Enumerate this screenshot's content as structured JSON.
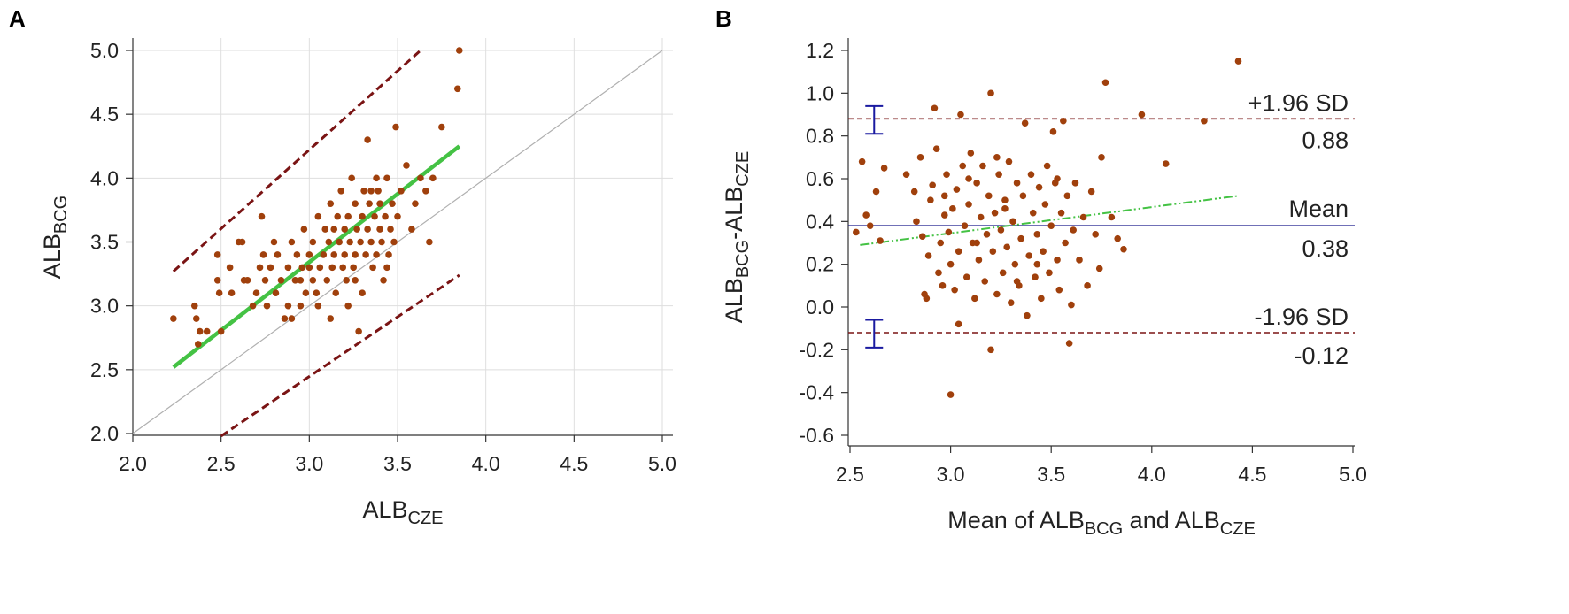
{
  "panel_a": {
    "label": "A",
    "chart_data": {
      "type": "scatter",
      "title": "",
      "xlabel": {
        "main": "ALB",
        "sub": "CZE"
      },
      "ylabel": {
        "main": "ALB",
        "sub": "BCG"
      },
      "xlim": [
        2.0,
        5.0
      ],
      "ylim": [
        2.0,
        5.0
      ],
      "xticks": [
        "2.0",
        "2.5",
        "3.0",
        "3.5",
        "4.0",
        "4.5",
        "5.0"
      ],
      "yticks": [
        "2.0",
        "2.5",
        "3.0",
        "3.5",
        "4.0",
        "4.5",
        "5.0"
      ],
      "grid": true,
      "identity_line": {
        "x": [
          2.0,
          5.0
        ],
        "y": [
          2.0,
          5.0
        ],
        "color": "#b0b0b0"
      },
      "regression_line": {
        "x": [
          2.23,
          3.85
        ],
        "y": [
          2.52,
          4.25
        ],
        "color": "#44c244"
      },
      "prediction_upper": {
        "x": [
          2.23,
          3.63
        ],
        "y": [
          3.27,
          5.0
        ],
        "color": "#7a1414"
      },
      "prediction_lower": {
        "x": [
          2.5,
          3.85
        ],
        "y": [
          1.98,
          3.24
        ],
        "color": "#7a1414"
      },
      "point_color": "#a0400c",
      "points": [
        [
          2.23,
          2.9
        ],
        [
          2.35,
          3.0
        ],
        [
          2.36,
          2.9
        ],
        [
          2.37,
          2.7
        ],
        [
          2.38,
          2.8
        ],
        [
          2.42,
          2.8
        ],
        [
          2.48,
          3.4
        ],
        [
          2.48,
          3.2
        ],
        [
          2.49,
          3.1
        ],
        [
          2.5,
          2.8
        ],
        [
          2.55,
          3.3
        ],
        [
          2.56,
          3.1
        ],
        [
          2.6,
          3.5
        ],
        [
          2.62,
          3.5
        ],
        [
          2.63,
          3.2
        ],
        [
          2.65,
          3.2
        ],
        [
          2.68,
          3.0
        ],
        [
          2.7,
          3.1
        ],
        [
          2.72,
          3.3
        ],
        [
          2.73,
          3.7
        ],
        [
          2.74,
          3.4
        ],
        [
          2.75,
          3.2
        ],
        [
          2.76,
          3.0
        ],
        [
          2.78,
          3.3
        ],
        [
          2.8,
          3.5
        ],
        [
          2.81,
          3.1
        ],
        [
          2.82,
          3.4
        ],
        [
          2.84,
          3.2
        ],
        [
          2.86,
          2.9
        ],
        [
          2.88,
          3.3
        ],
        [
          2.88,
          3.0
        ],
        [
          2.9,
          2.9
        ],
        [
          2.9,
          3.5
        ],
        [
          2.92,
          3.2
        ],
        [
          2.93,
          3.4
        ],
        [
          2.95,
          3.0
        ],
        [
          2.96,
          3.3
        ],
        [
          2.97,
          3.6
        ],
        [
          2.98,
          3.1
        ],
        [
          3.0,
          3.4
        ],
        [
          3.0,
          3.3
        ],
        [
          3.02,
          3.2
        ],
        [
          3.02,
          3.5
        ],
        [
          3.04,
          3.1
        ],
        [
          3.05,
          3.7
        ],
        [
          3.06,
          3.3
        ],
        [
          3.08,
          3.4
        ],
        [
          3.09,
          3.6
        ],
        [
          3.1,
          3.2
        ],
        [
          3.11,
          3.5
        ],
        [
          3.12,
          3.8
        ],
        [
          3.13,
          3.3
        ],
        [
          3.14,
          3.4
        ],
        [
          3.15,
          3.1
        ],
        [
          3.16,
          3.7
        ],
        [
          3.17,
          3.5
        ],
        [
          3.18,
          3.9
        ],
        [
          3.19,
          3.3
        ],
        [
          3.2,
          3.6
        ],
        [
          3.2,
          3.4
        ],
        [
          3.21,
          3.2
        ],
        [
          3.22,
          3.0
        ],
        [
          3.22,
          3.7
        ],
        [
          3.23,
          3.5
        ],
        [
          3.24,
          4.0
        ],
        [
          3.25,
          3.3
        ],
        [
          3.26,
          3.8
        ],
        [
          3.26,
          3.4
        ],
        [
          3.27,
          3.6
        ],
        [
          3.28,
          2.8
        ],
        [
          3.29,
          3.5
        ],
        [
          3.3,
          3.1
        ],
        [
          3.3,
          3.7
        ],
        [
          3.31,
          3.9
        ],
        [
          3.32,
          3.4
        ],
        [
          3.33,
          4.3
        ],
        [
          3.33,
          3.6
        ],
        [
          3.34,
          3.8
        ],
        [
          3.35,
          3.5
        ],
        [
          3.36,
          3.3
        ],
        [
          3.37,
          3.7
        ],
        [
          3.38,
          3.4
        ],
        [
          3.39,
          3.9
        ],
        [
          3.4,
          3.6
        ],
        [
          3.4,
          3.8
        ],
        [
          3.41,
          3.5
        ],
        [
          3.42,
          3.2
        ],
        [
          3.43,
          3.7
        ],
        [
          3.44,
          4.0
        ],
        [
          3.45,
          3.4
        ],
        [
          3.46,
          3.6
        ],
        [
          3.47,
          3.8
        ],
        [
          3.48,
          3.5
        ],
        [
          3.49,
          4.4
        ],
        [
          3.5,
          3.7
        ],
        [
          3.52,
          3.9
        ],
        [
          3.55,
          4.1
        ],
        [
          3.58,
          3.6
        ],
        [
          3.6,
          3.8
        ],
        [
          3.63,
          4.0
        ],
        [
          3.66,
          3.9
        ],
        [
          3.68,
          3.5
        ],
        [
          3.7,
          4.0
        ],
        [
          3.75,
          4.4
        ],
        [
          3.84,
          4.7
        ],
        [
          3.85,
          5.0
        ],
        [
          2.95,
          3.2
        ],
        [
          3.05,
          3.0
        ],
        [
          3.14,
          3.6
        ],
        [
          3.26,
          3.2
        ],
        [
          3.35,
          3.9
        ],
        [
          3.44,
          3.3
        ],
        [
          3.12,
          2.9
        ],
        [
          3.38,
          4.0
        ]
      ]
    }
  },
  "panel_b": {
    "label": "B",
    "chart_data": {
      "type": "scatter",
      "title": "",
      "xlabel": {
        "prefix": "Mean of ALB",
        "sub1": "BCG",
        "mid": " and ALB",
        "sub2": "CZE"
      },
      "ylabel": {
        "a": "ALB",
        "asub": "BCG",
        "b": "-ALB",
        "bsub": "CZE"
      },
      "xlim": [
        2.5,
        5.0
      ],
      "ylim": [
        -0.65,
        1.25
      ],
      "xticks": [
        "2.5",
        "3.0",
        "3.5",
        "4.0",
        "4.5",
        "5.0"
      ],
      "yticks": [
        "-0.6",
        "-0.4",
        "-0.2",
        "0.0",
        "0.2",
        "0.4",
        "0.6",
        "0.8",
        "1.0",
        "1.2"
      ],
      "mean": {
        "value": 0.38,
        "label": "Mean",
        "value_label": "0.38",
        "color": "#1a1a8c"
      },
      "upper_loa": {
        "value": 0.88,
        "label": "+1.96 SD",
        "value_label": "0.88",
        "color": "#7a1414"
      },
      "lower_loa": {
        "value": -0.12,
        "label": "-1.96 SD",
        "value_label": "-0.12",
        "color": "#7a1414"
      },
      "ci_bars": [
        {
          "x": 2.62,
          "low": 0.81,
          "high": 0.94
        },
        {
          "x": 2.62,
          "low": -0.19,
          "high": -0.06
        }
      ],
      "trend_line": {
        "x": [
          2.55,
          4.43
        ],
        "y": [
          0.29,
          0.52
        ],
        "color": "#44c244"
      },
      "point_color": "#a0400c",
      "points": [
        [
          2.53,
          0.35
        ],
        [
          2.56,
          0.68
        ],
        [
          2.58,
          0.43
        ],
        [
          2.6,
          0.38
        ],
        [
          2.63,
          0.54
        ],
        [
          2.65,
          0.31
        ],
        [
          2.67,
          0.65
        ],
        [
          2.78,
          0.62
        ],
        [
          2.82,
          0.54
        ],
        [
          2.83,
          0.4
        ],
        [
          2.85,
          0.7
        ],
        [
          2.86,
          0.33
        ],
        [
          2.87,
          0.06
        ],
        [
          2.88,
          0.04
        ],
        [
          2.89,
          0.24
        ],
        [
          2.9,
          0.5
        ],
        [
          2.91,
          0.57
        ],
        [
          2.92,
          0.93
        ],
        [
          2.93,
          0.74
        ],
        [
          2.94,
          0.16
        ],
        [
          2.95,
          0.3
        ],
        [
          2.96,
          0.1
        ],
        [
          2.97,
          0.43
        ],
        [
          2.98,
          0.62
        ],
        [
          2.99,
          0.35
        ],
        [
          3.0,
          0.2
        ],
        [
          3.0,
          -0.41
        ],
        [
          3.01,
          0.46
        ],
        [
          3.02,
          0.08
        ],
        [
          3.03,
          0.55
        ],
        [
          3.04,
          0.26
        ],
        [
          3.04,
          -0.08
        ],
        [
          3.05,
          0.9
        ],
        [
          3.06,
          0.66
        ],
        [
          3.07,
          0.38
        ],
        [
          3.08,
          0.14
        ],
        [
          3.09,
          0.48
        ],
        [
          3.1,
          0.72
        ],
        [
          3.11,
          0.3
        ],
        [
          3.12,
          0.04
        ],
        [
          3.13,
          0.58
        ],
        [
          3.14,
          0.22
        ],
        [
          3.15,
          0.42
        ],
        [
          3.16,
          0.66
        ],
        [
          3.17,
          0.12
        ],
        [
          3.18,
          0.34
        ],
        [
          3.19,
          0.52
        ],
        [
          3.2,
          1.0
        ],
        [
          3.2,
          -0.2
        ],
        [
          3.21,
          0.26
        ],
        [
          3.22,
          0.44
        ],
        [
          3.23,
          0.06
        ],
        [
          3.24,
          0.62
        ],
        [
          3.25,
          0.36
        ],
        [
          3.26,
          0.16
        ],
        [
          3.27,
          0.5
        ],
        [
          3.28,
          0.28
        ],
        [
          3.29,
          0.68
        ],
        [
          3.3,
          0.02
        ],
        [
          3.31,
          0.4
        ],
        [
          3.32,
          0.2
        ],
        [
          3.33,
          0.58
        ],
        [
          3.34,
          0.1
        ],
        [
          3.35,
          0.32
        ],
        [
          3.36,
          0.52
        ],
        [
          3.37,
          0.86
        ],
        [
          3.38,
          -0.04
        ],
        [
          3.39,
          0.24
        ],
        [
          3.4,
          0.62
        ],
        [
          3.41,
          0.44
        ],
        [
          3.42,
          0.14
        ],
        [
          3.43,
          0.34
        ],
        [
          3.44,
          0.56
        ],
        [
          3.45,
          0.04
        ],
        [
          3.46,
          0.26
        ],
        [
          3.47,
          0.48
        ],
        [
          3.48,
          0.66
        ],
        [
          3.49,
          0.16
        ],
        [
          3.5,
          0.38
        ],
        [
          3.51,
          0.82
        ],
        [
          3.52,
          0.58
        ],
        [
          3.53,
          0.22
        ],
        [
          3.54,
          0.08
        ],
        [
          3.55,
          0.44
        ],
        [
          3.56,
          0.87
        ],
        [
          3.57,
          0.3
        ],
        [
          3.58,
          0.52
        ],
        [
          3.59,
          -0.17
        ],
        [
          3.6,
          0.01
        ],
        [
          3.61,
          0.36
        ],
        [
          3.62,
          0.58
        ],
        [
          3.64,
          0.22
        ],
        [
          3.66,
          0.42
        ],
        [
          3.68,
          0.1
        ],
        [
          3.7,
          0.54
        ],
        [
          3.72,
          0.34
        ],
        [
          3.74,
          0.18
        ],
        [
          3.75,
          0.7
        ],
        [
          3.77,
          1.05
        ],
        [
          3.8,
          0.42
        ],
        [
          3.83,
          0.32
        ],
        [
          3.86,
          0.27
        ],
        [
          3.95,
          0.9
        ],
        [
          4.07,
          0.67
        ],
        [
          4.26,
          0.87
        ],
        [
          4.43,
          1.15
        ],
        [
          3.09,
          0.6
        ],
        [
          3.27,
          0.46
        ],
        [
          3.43,
          0.2
        ],
        [
          3.13,
          0.3
        ],
        [
          3.33,
          0.12
        ],
        [
          3.53,
          0.6
        ],
        [
          2.97,
          0.52
        ],
        [
          3.23,
          0.7
        ]
      ]
    }
  }
}
